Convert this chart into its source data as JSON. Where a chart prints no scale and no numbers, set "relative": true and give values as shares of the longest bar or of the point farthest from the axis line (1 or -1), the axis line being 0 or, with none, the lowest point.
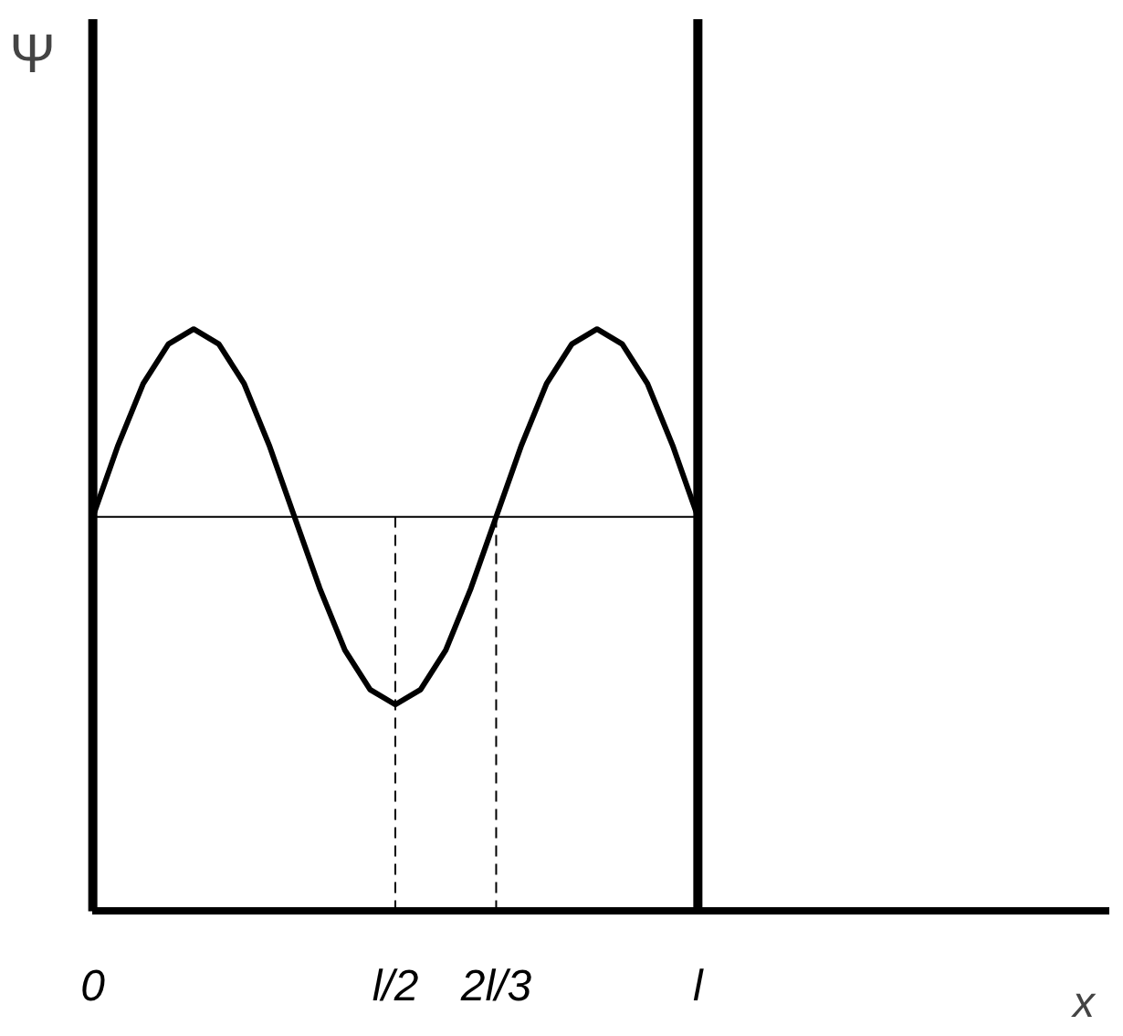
{
  "chart_data": {
    "type": "line",
    "relative": true,
    "annotations": [
      "x"
    ],
    "ylabel": "Ψ",
    "categories": [
      "0",
      null,
      null,
      null,
      null,
      null,
      null,
      null,
      null,
      null,
      null,
      null,
      "l/2",
      null,
      null,
      null,
      "2l/3",
      null,
      null,
      null,
      null,
      null,
      null,
      null,
      "l"
    ],
    "series": [
      {
        "color": "#000000",
        "values": [
          0,
          0.38,
          0.71,
          0.92,
          1,
          0.92,
          0.71,
          0.38,
          0,
          -0.38,
          -0.71,
          -0.92,
          -1,
          -0.92,
          -0.71,
          -0.38,
          0,
          0.38,
          0.71,
          0.92,
          1,
          0.92,
          0.71,
          0.38,
          0
        ]
      }
    ],
    "ref_lines": [
      {
        "axis": "x",
        "value": "0",
        "color": "#000000",
        "line_style": "solid"
      },
      {
        "axis": "x",
        "value": "l",
        "color": "#000000",
        "line_style": "solid"
      },
      {
        "axis": "x",
        "value": "l/2",
        "color": "#000000",
        "line_style": "dashed"
      },
      {
        "axis": "x",
        "value": "2l/3",
        "color": "#000000",
        "line_style": "dashed"
      }
    ],
    "grid": false,
    "line_style": "solid"
  }
}
